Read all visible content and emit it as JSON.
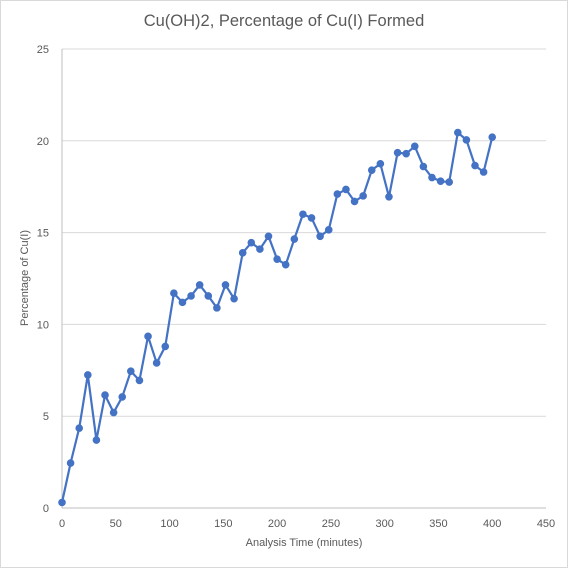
{
  "chart_data": {
    "type": "scatter",
    "title": "Cu(OH)2, Percentage of Cu(I) Formed",
    "xlabel": "Analysis Time (minutes)",
    "ylabel": "Percentage of Cu(I)",
    "xlim": [
      0,
      450
    ],
    "ylim": [
      0,
      25
    ],
    "x_ticks": [
      "0",
      "50",
      "100",
      "150",
      "200",
      "250",
      "300",
      "350",
      "400",
      "450"
    ],
    "y_ticks": [
      "0",
      "5",
      "10",
      "15",
      "20",
      "25"
    ],
    "grid": "horizontal",
    "legend": "none",
    "line_color": "#4472c4",
    "marker_color": "#4472c4",
    "series": [
      {
        "x": [
          0,
          8,
          16,
          24,
          32,
          40,
          48,
          56,
          64,
          72,
          80,
          88,
          96,
          104,
          112,
          120,
          128,
          136,
          144,
          152,
          160,
          168,
          176,
          184,
          192,
          200,
          208,
          216,
          224,
          232,
          240,
          248,
          256,
          264,
          272,
          280,
          288,
          296,
          304,
          312,
          320,
          328,
          336,
          344,
          352,
          360,
          368,
          376,
          384,
          392,
          400
        ],
        "y": [
          0.3,
          2.45,
          4.35,
          7.25,
          3.7,
          6.15,
          5.2,
          6.05,
          7.45,
          6.95,
          9.35,
          7.9,
          8.8,
          11.7,
          11.2,
          11.55,
          12.15,
          11.55,
          10.9,
          12.15,
          11.4,
          13.9,
          14.45,
          14.1,
          14.8,
          13.55,
          13.25,
          14.65,
          16.0,
          15.8,
          14.8,
          15.15,
          17.1,
          17.35,
          16.7,
          17.0,
          18.4,
          18.75,
          16.95,
          19.35,
          19.3,
          19.7,
          18.6,
          18.0,
          17.8,
          17.75,
          20.45,
          20.05,
          18.65,
          18.3,
          20.2
        ]
      }
    ]
  }
}
